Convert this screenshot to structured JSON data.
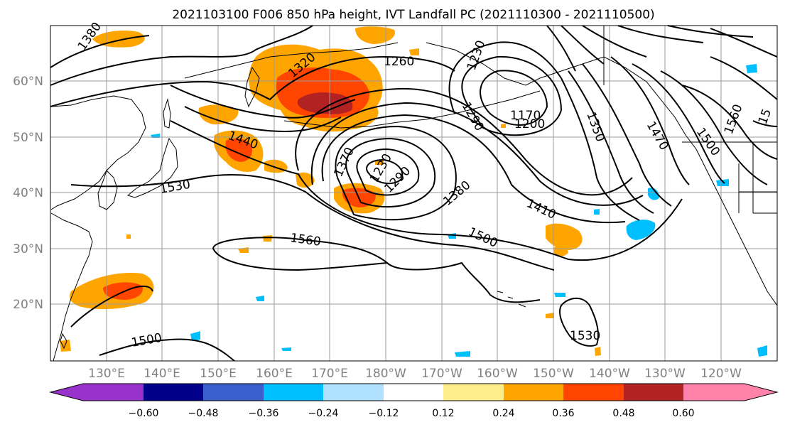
{
  "title": "2021103100 F006 850 hPa height, IVT Landfall PC (2021110300 - 2021110500)",
  "lat_ticks": [
    "60°N",
    "50°N",
    "40°N",
    "30°N",
    "20°N"
  ],
  "lon_ticks": [
    "130°E",
    "140°E",
    "150°E",
    "160°E",
    "170°E",
    "180°W",
    "170°W",
    "160°W",
    "150°W",
    "140°W",
    "130°W",
    "120°W"
  ],
  "contour_labels": [
    "1380",
    "1320",
    "1260",
    "1230",
    "1170",
    "1200",
    "1290",
    "1350",
    "1470",
    "1500",
    "1560",
    "1440",
    "1530",
    "1370",
    "1230",
    "1290",
    "1380",
    "1410",
    "1500",
    "1560",
    "1500",
    "1530",
    "15"
  ],
  "colorbar": {
    "ticks": [
      "−0.60",
      "−0.48",
      "−0.36",
      "−0.24",
      "−0.12",
      "0.12",
      "0.24",
      "0.36",
      "0.48",
      "0.60"
    ],
    "colors": [
      "#9932cc",
      "#00008b",
      "#3a5fcd",
      "#00bfff",
      "#b0e2ff",
      "#ffffff",
      "#ffec8b",
      "#ffa500",
      "#ff4500",
      "#b22222",
      "#ff82ab"
    ]
  },
  "map": {
    "projection": "PlateCarree",
    "lon_range": [
      120,
      250
    ],
    "lat_range": [
      10,
      70
    ],
    "fill_field": "IVT Landfall PC",
    "contour_field": "850 hPa height"
  }
}
